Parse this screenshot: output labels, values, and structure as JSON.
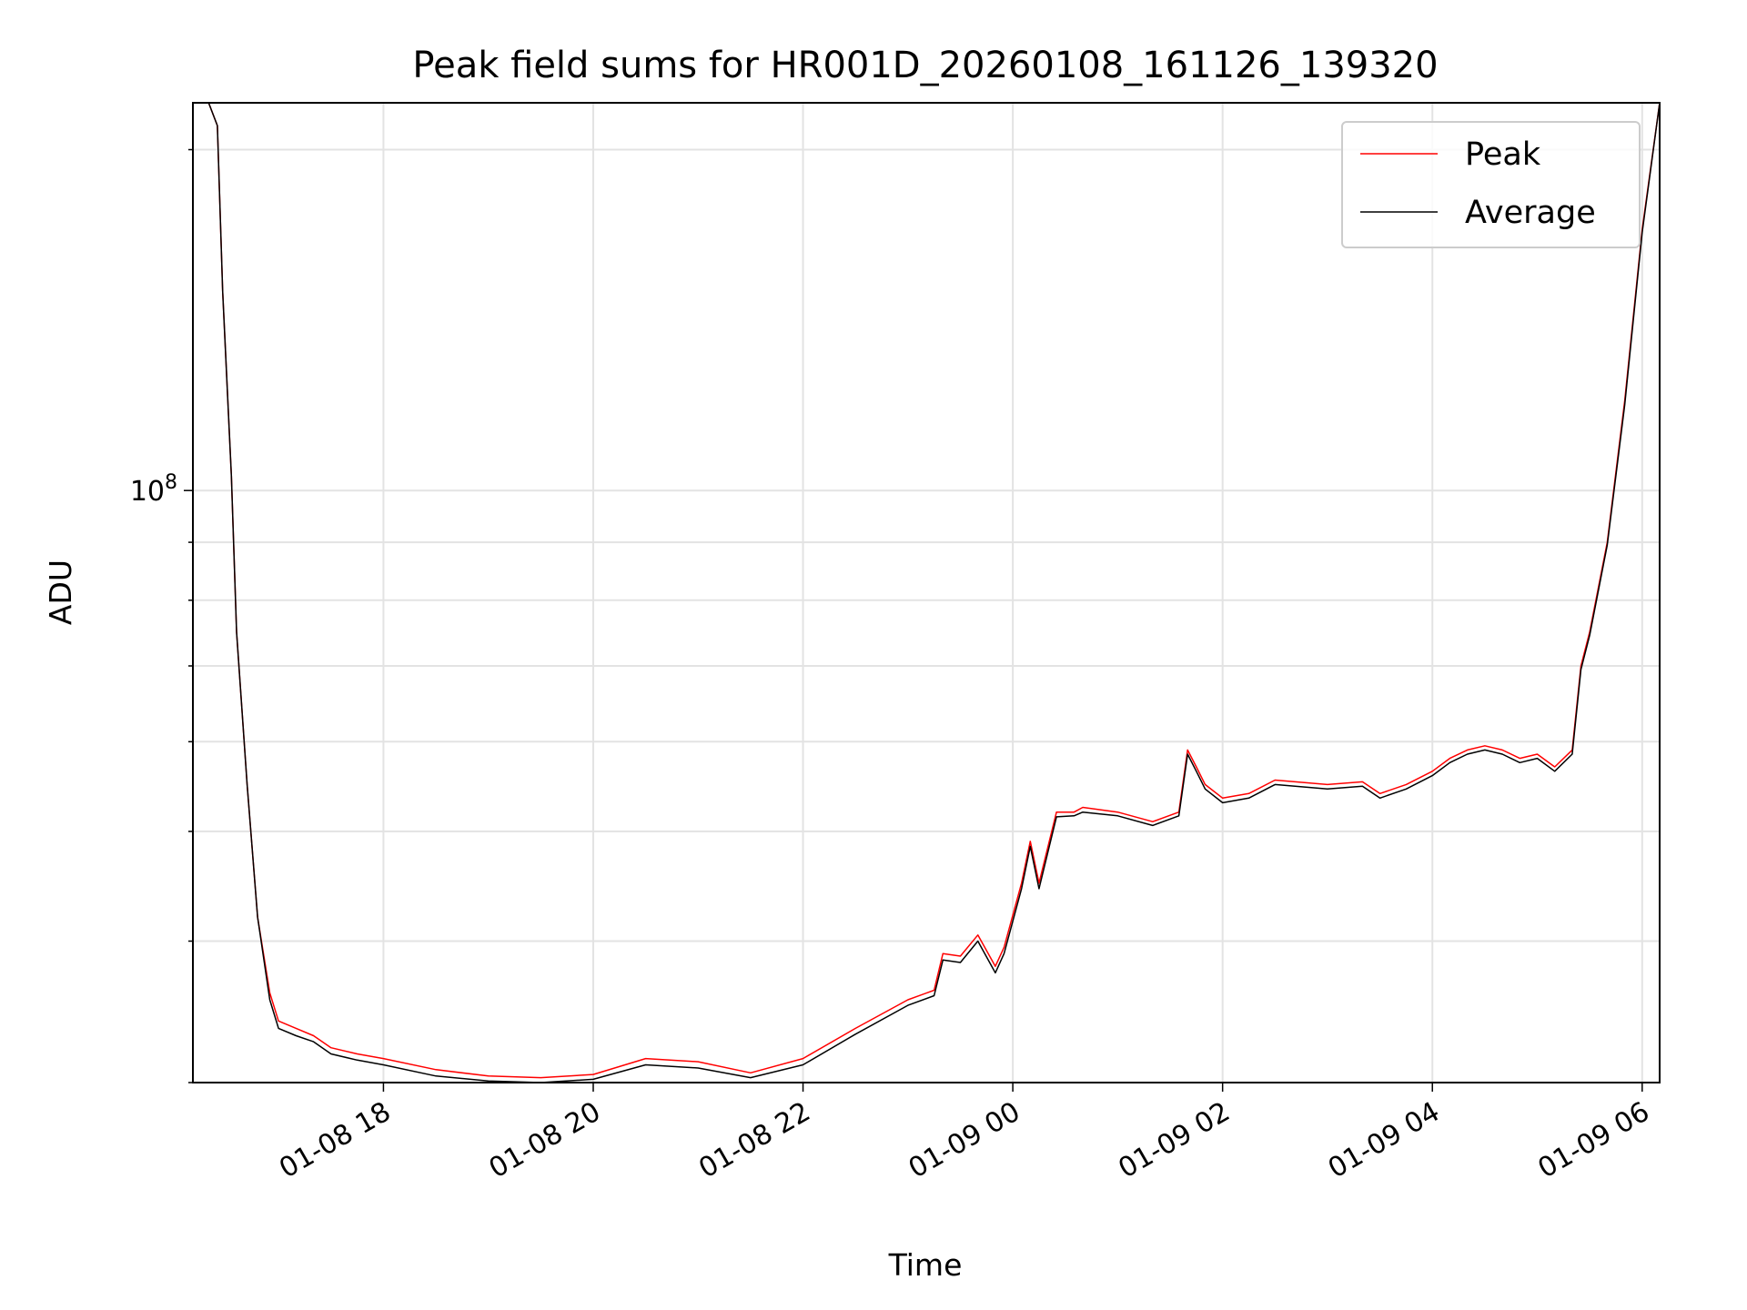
{
  "chart_data": {
    "type": "line",
    "title": "Peak field sums for HR001D_20260108_161126_139320",
    "xlabel": "Time",
    "ylabel": "ADU",
    "yscale": "log",
    "ylim": [
      30000000,
      220000000
    ],
    "y_major_tick": {
      "value": 100000000,
      "label_base": "10",
      "label_exp": "8"
    },
    "y_minor_ticks": [
      30000000,
      40000000,
      50000000,
      60000000,
      70000000,
      80000000,
      90000000,
      200000000
    ],
    "xlim": [
      "2026-01-08 16:11",
      "2026-01-09 06:10"
    ],
    "x_ticks": [
      {
        "value": "2026-01-08 18:00",
        "label": "01-08 18"
      },
      {
        "value": "2026-01-08 20:00",
        "label": "01-08 20"
      },
      {
        "value": "2026-01-08 22:00",
        "label": "01-08 22"
      },
      {
        "value": "2026-01-09 00:00",
        "label": "01-09 00"
      },
      {
        "value": "2026-01-09 02:00",
        "label": "01-09 02"
      },
      {
        "value": "2026-01-09 04:00",
        "label": "01-09 04"
      },
      {
        "value": "2026-01-09 06:00",
        "label": "01-09 06"
      }
    ],
    "grid": true,
    "legend_position": "top-right",
    "series": [
      {
        "name": "Peak",
        "color": "#ff0000",
        "x": [
          "2026-01-08 16:11",
          "2026-01-08 16:20",
          "2026-01-08 16:25",
          "2026-01-08 16:28",
          "2026-01-08 16:33",
          "2026-01-08 16:36",
          "2026-01-08 16:42",
          "2026-01-08 16:48",
          "2026-01-08 16:55",
          "2026-01-08 17:00",
          "2026-01-08 17:10",
          "2026-01-08 17:20",
          "2026-01-08 17:30",
          "2026-01-08 17:45",
          "2026-01-08 18:00",
          "2026-01-08 18:30",
          "2026-01-08 19:00",
          "2026-01-08 19:30",
          "2026-01-08 20:00",
          "2026-01-08 20:30",
          "2026-01-08 21:00",
          "2026-01-08 21:30",
          "2026-01-08 22:00",
          "2026-01-08 22:30",
          "2026-01-08 23:00",
          "2026-01-08 23:15",
          "2026-01-08 23:20",
          "2026-01-08 23:30",
          "2026-01-08 23:40",
          "2026-01-08 23:50",
          "2026-01-08 23:55",
          "2026-01-09 00:05",
          "2026-01-09 00:10",
          "2026-01-09 00:15",
          "2026-01-09 00:25",
          "2026-01-09 00:35",
          "2026-01-09 00:40",
          "2026-01-09 01:00",
          "2026-01-09 01:20",
          "2026-01-09 01:35",
          "2026-01-09 01:40",
          "2026-01-09 01:45",
          "2026-01-09 01:50",
          "2026-01-09 02:00",
          "2026-01-09 02:15",
          "2026-01-09 02:30",
          "2026-01-09 03:00",
          "2026-01-09 03:20",
          "2026-01-09 03:30",
          "2026-01-09 03:45",
          "2026-01-09 04:00",
          "2026-01-09 04:10",
          "2026-01-09 04:20",
          "2026-01-09 04:30",
          "2026-01-09 04:40",
          "2026-01-09 04:50",
          "2026-01-09 05:00",
          "2026-01-09 05:10",
          "2026-01-09 05:20",
          "2026-01-09 05:25",
          "2026-01-09 05:30",
          "2026-01-09 05:40",
          "2026-01-09 05:50",
          "2026-01-09 06:00",
          "2026-01-09 06:10"
        ],
        "y": [
          220000000,
          220000000,
          210000000,
          150000000,
          103000000,
          75000000,
          55000000,
          42000000,
          36000000,
          34000000,
          33500000,
          33000000,
          32200000,
          31800000,
          31500000,
          30800000,
          30400000,
          30300000,
          30500000,
          31500000,
          31300000,
          30600000,
          31500000,
          33500000,
          35500000,
          36200000,
          39000000,
          38800000,
          40500000,
          38000000,
          39500000,
          45000000,
          49000000,
          45000000,
          52000000,
          52000000,
          52500000,
          52000000,
          51000000,
          52000000,
          59000000,
          57000000,
          55000000,
          53500000,
          54000000,
          55500000,
          55000000,
          55300000,
          54000000,
          55000000,
          56500000,
          58000000,
          59000000,
          59500000,
          59000000,
          58000000,
          58500000,
          57000000,
          59000000,
          70000000,
          75000000,
          90000000,
          120000000,
          170000000,
          220000000
        ]
      },
      {
        "name": "Average",
        "color": "#000000",
        "x": [
          "2026-01-08 16:11",
          "2026-01-08 16:20",
          "2026-01-08 16:25",
          "2026-01-08 16:28",
          "2026-01-08 16:33",
          "2026-01-08 16:36",
          "2026-01-08 16:42",
          "2026-01-08 16:48",
          "2026-01-08 16:55",
          "2026-01-08 17:00",
          "2026-01-08 17:10",
          "2026-01-08 17:20",
          "2026-01-08 17:30",
          "2026-01-08 17:45",
          "2026-01-08 18:00",
          "2026-01-08 18:30",
          "2026-01-08 19:00",
          "2026-01-08 19:30",
          "2026-01-08 20:00",
          "2026-01-08 20:30",
          "2026-01-08 21:00",
          "2026-01-08 21:30",
          "2026-01-08 22:00",
          "2026-01-08 22:30",
          "2026-01-08 23:00",
          "2026-01-08 23:15",
          "2026-01-08 23:20",
          "2026-01-08 23:30",
          "2026-01-08 23:40",
          "2026-01-08 23:50",
          "2026-01-08 23:55",
          "2026-01-09 00:05",
          "2026-01-09 00:10",
          "2026-01-09 00:15",
          "2026-01-09 00:25",
          "2026-01-09 00:35",
          "2026-01-09 00:40",
          "2026-01-09 01:00",
          "2026-01-09 01:20",
          "2026-01-09 01:35",
          "2026-01-09 01:40",
          "2026-01-09 01:45",
          "2026-01-09 01:50",
          "2026-01-09 02:00",
          "2026-01-09 02:15",
          "2026-01-09 02:30",
          "2026-01-09 03:00",
          "2026-01-09 03:20",
          "2026-01-09 03:30",
          "2026-01-09 03:45",
          "2026-01-09 04:00",
          "2026-01-09 04:10",
          "2026-01-09 04:20",
          "2026-01-09 04:30",
          "2026-01-09 04:40",
          "2026-01-09 04:50",
          "2026-01-09 05:00",
          "2026-01-09 05:10",
          "2026-01-09 05:20",
          "2026-01-09 05:25",
          "2026-01-09 05:30",
          "2026-01-09 05:40",
          "2026-01-09 05:50",
          "2026-01-09 06:00",
          "2026-01-09 06:10"
        ],
        "y": [
          220000000,
          220000000,
          210000000,
          150000000,
          103000000,
          75000000,
          55000000,
          42000000,
          35500000,
          33500000,
          33000000,
          32600000,
          31800000,
          31400000,
          31100000,
          30400000,
          30100000,
          30000000,
          30200000,
          31100000,
          30900000,
          30300000,
          31100000,
          33100000,
          35100000,
          35800000,
          38500000,
          38300000,
          40000000,
          37500000,
          39000000,
          44500000,
          48500000,
          44500000,
          51500000,
          51600000,
          52000000,
          51600000,
          50600000,
          51600000,
          58500000,
          56500000,
          54500000,
          53000000,
          53500000,
          55000000,
          54500000,
          54800000,
          53500000,
          54500000,
          56000000,
          57500000,
          58500000,
          59000000,
          58500000,
          57500000,
          58000000,
          56500000,
          58500000,
          69500000,
          74500000,
          89500000,
          119000000,
          169000000,
          220000000
        ]
      }
    ]
  }
}
